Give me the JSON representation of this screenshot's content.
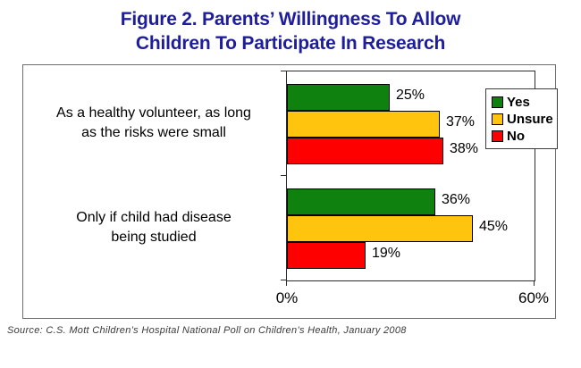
{
  "title": {
    "line1": "Figure 2. Parents’ Willingness To Allow",
    "line2": "Children To Participate In Research"
  },
  "source_note": "Source: C.S. Mott Children’s Hospital National Poll on Children’s Health, January 2008",
  "chart_data": {
    "type": "bar",
    "orientation": "horizontal",
    "title": "Figure 2. Parents’ Willingness To Allow Children To Participate In Research",
    "categories": [
      "As a healthy volunteer, as long\nas the risks were small",
      "Only if child had disease\nbeing studied"
    ],
    "series": [
      {
        "name": "Yes",
        "color": "#0E810E",
        "values": [
          25,
          36
        ]
      },
      {
        "name": "Unsure",
        "color": "#FFC40D",
        "values": [
          37,
          45
        ]
      },
      {
        "name": "No",
        "color": "#FE0000",
        "values": [
          38,
          19
        ]
      }
    ],
    "value_label_suffix": "%",
    "xlim": [
      0,
      60
    ],
    "x_ticks": [
      "0%",
      "60%"
    ],
    "grid": false,
    "legend_position": "top-right-inside"
  }
}
